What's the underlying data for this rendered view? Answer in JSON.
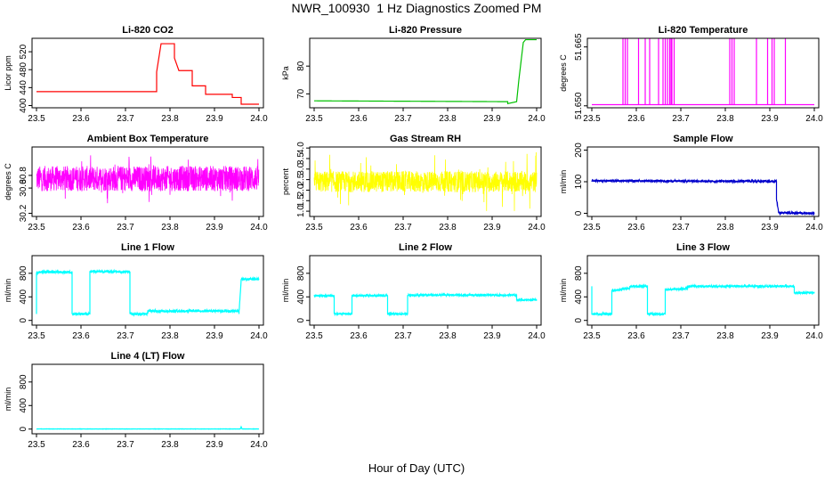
{
  "title": "NWR_100930  1 Hz Diagnostics Zoomed PM",
  "xlabel": "Hour of Day (UTC)",
  "chart_data": [
    {
      "type": "line",
      "title": "Li-820 CO2",
      "ylabel": "Licor ppm",
      "color": "#ff0000",
      "xlim": [
        23.49,
        24.01
      ],
      "ylim": [
        395,
        550
      ],
      "xticks": [
        "23.5",
        "23.6",
        "23.7",
        "23.8",
        "23.9",
        "24.0"
      ],
      "yticks": [
        "400",
        "440",
        "480",
        "520"
      ],
      "series": [
        {
          "x": [
            23.5,
            23.77,
            23.77,
            23.78,
            23.78,
            23.81,
            23.81,
            23.82,
            23.82,
            23.85,
            23.85,
            23.88,
            23.88,
            23.94,
            23.94,
            23.96,
            23.96,
            24.0
          ],
          "y": [
            431,
            431,
            475,
            538,
            538,
            538,
            506,
            478,
            478,
            478,
            444,
            444,
            425,
            425,
            418,
            418,
            403,
            403
          ]
        }
      ]
    },
    {
      "type": "line",
      "title": "Li-820 Pressure",
      "ylabel": "kPa",
      "color": "#00c000",
      "xlim": [
        23.49,
        24.01
      ],
      "ylim": [
        65,
        90
      ],
      "xticks": [
        "23.5",
        "23.6",
        "23.7",
        "23.8",
        "23.9",
        "24.0"
      ],
      "yticks": [
        "70",
        "80"
      ],
      "series": [
        {
          "x": [
            23.5,
            23.935,
            23.935,
            23.955,
            23.96,
            23.97,
            23.975,
            24.0
          ],
          "y": [
            67.5,
            67.2,
            66.5,
            67.2,
            75,
            88.5,
            89.5,
            89.5
          ]
        }
      ]
    },
    {
      "type": "line",
      "title": "Li-820 Temperature",
      "ylabel": "degrees C",
      "color": "#ff00ff",
      "xlim": [
        23.49,
        24.01
      ],
      "ylim": [
        51.6495,
        51.6672
      ],
      "xticks": [
        "23.5",
        "23.6",
        "23.7",
        "23.8",
        "23.9",
        "24.0"
      ],
      "yticks": [
        "51.650",
        "51.665"
      ],
      "baseline": 51.6503,
      "spike_top": 51.6672,
      "spikes": [
        23.57,
        23.575,
        23.58,
        23.605,
        23.62,
        23.63,
        23.65,
        23.66,
        23.665,
        23.67,
        23.675,
        23.678,
        23.68,
        23.685,
        23.81,
        23.815,
        23.82,
        23.87,
        23.895,
        23.905,
        23.91,
        23.935
      ]
    },
    {
      "type": "line",
      "title": "Ambient Box Temperature",
      "ylabel": "degrees C",
      "color": "#ff00ff",
      "xlim": [
        23.49,
        24.01
      ],
      "ylim": [
        30.15,
        31.25
      ],
      "xticks": [
        "23.5",
        "23.6",
        "23.7",
        "23.8",
        "23.9",
        "24.0"
      ],
      "yticks": [
        "30.2",
        "30.6",
        "30.8"
      ],
      "noise": {
        "center": 30.75,
        "amp": 0.2,
        "spike_amp": 0.4
      }
    },
    {
      "type": "line",
      "title": "Gas Stream RH",
      "ylabel": "percent",
      "color": "#ffff00",
      "xlim": [
        23.49,
        24.01
      ],
      "ylim": [
        0.75,
        4.05
      ],
      "xticks": [
        "23.5",
        "23.6",
        "23.7",
        "23.8",
        "23.9",
        "24.0"
      ],
      "yticks": [
        "1.0",
        "1.5",
        "2.0",
        "2.5",
        "3.0",
        "3.5",
        "4.0"
      ],
      "noise": {
        "center": 2.4,
        "amp": 0.5,
        "spike_amp": 1.4
      }
    },
    {
      "type": "line",
      "title": "Sample Flow",
      "ylabel": "ml/min",
      "color": "#0000cc",
      "xlim": [
        23.49,
        24.01
      ],
      "ylim": [
        -10,
        210
      ],
      "xticks": [
        "23.5",
        "23.6",
        "23.7",
        "23.8",
        "23.9",
        "24.0"
      ],
      "yticks": [
        "0",
        "100",
        "200"
      ],
      "series": [
        {
          "x": [
            23.5,
            23.915,
            23.915,
            23.92,
            24.0
          ],
          "y": [
            103,
            101,
            45,
            2,
            0
          ]
        }
      ],
      "noise_amp": 3
    },
    {
      "type": "line",
      "title": "Line 1 Flow",
      "ylabel": "ml/min",
      "color": "#00ffff",
      "xlim": [
        23.49,
        24.01
      ],
      "ylim": [
        -80,
        1100
      ],
      "xticks": [
        "23.5",
        "23.6",
        "23.7",
        "23.8",
        "23.9",
        "24.0"
      ],
      "yticks": [
        "0",
        "400",
        "800"
      ],
      "series": [
        {
          "x": [
            23.5,
            23.5,
            23.505,
            23.58,
            23.58,
            23.62,
            23.62,
            23.71,
            23.71,
            23.75,
            23.75,
            23.955,
            23.955,
            23.96,
            24.0
          ],
          "y": [
            110,
            800,
            820,
            820,
            110,
            110,
            830,
            830,
            110,
            110,
            160,
            160,
            110,
            700,
            700
          ]
        }
      ],
      "noise_amp": 20
    },
    {
      "type": "line",
      "title": "Line 2 Flow",
      "ylabel": "ml/min",
      "color": "#00ffff",
      "xlim": [
        23.49,
        24.01
      ],
      "ylim": [
        -80,
        1100
      ],
      "xticks": [
        "23.5",
        "23.6",
        "23.7",
        "23.8",
        "23.9",
        "24.0"
      ],
      "yticks": [
        "0",
        "400",
        "800"
      ],
      "series": [
        {
          "x": [
            23.5,
            23.545,
            23.545,
            23.585,
            23.585,
            23.665,
            23.665,
            23.71,
            23.71,
            23.955,
            23.955,
            24.0
          ],
          "y": [
            420,
            420,
            110,
            110,
            420,
            420,
            110,
            110,
            430,
            430,
            350,
            350
          ]
        }
      ],
      "noise_amp": 15
    },
    {
      "type": "line",
      "title": "Line 3 Flow",
      "ylabel": "ml/min",
      "color": "#00ffff",
      "xlim": [
        23.49,
        24.01
      ],
      "ylim": [
        -80,
        1100
      ],
      "xticks": [
        "23.5",
        "23.6",
        "23.7",
        "23.8",
        "23.9",
        "24.0"
      ],
      "yticks": [
        "0",
        "400",
        "800"
      ],
      "series": [
        {
          "x": [
            23.5,
            23.5,
            23.505,
            23.545,
            23.545,
            23.585,
            23.585,
            23.625,
            23.625,
            23.665,
            23.665,
            23.715,
            23.715,
            23.955,
            23.955,
            24.0
          ],
          "y": [
            580,
            110,
            110,
            110,
            500,
            550,
            580,
            580,
            110,
            110,
            520,
            540,
            580,
            580,
            470,
            470
          ]
        }
      ],
      "noise_amp": 15
    },
    {
      "type": "line",
      "title": "Line 4 (LT) Flow",
      "ylabel": "ml/min",
      "color": "#00ffff",
      "xlim": [
        23.49,
        24.01
      ],
      "ylim": [
        -80,
        1100
      ],
      "xticks": [
        "23.5",
        "23.6",
        "23.7",
        "23.8",
        "23.9",
        "24.0"
      ],
      "yticks": [
        "0",
        "400",
        "800"
      ],
      "series": [
        {
          "x": [
            23.5,
            23.958,
            23.96,
            23.962,
            24.0
          ],
          "y": [
            2,
            2,
            40,
            2,
            2
          ]
        }
      ],
      "noise_amp": 2
    }
  ]
}
